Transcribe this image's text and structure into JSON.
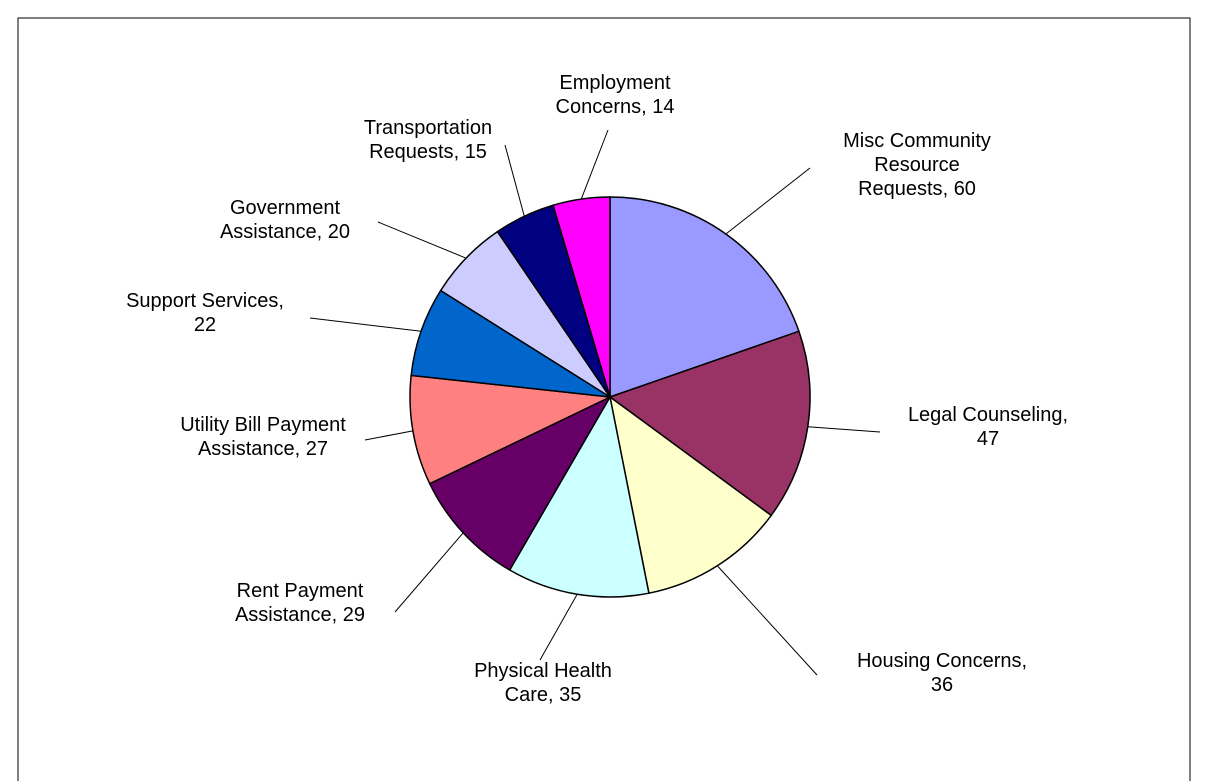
{
  "chart_data": {
    "type": "pie",
    "categories": [
      "Misc Community Resource Requests",
      "Legal Counseling",
      "Housing Concerns",
      "Physical Health Care",
      "Rent Payment Assistance",
      "Utility Bill Payment Assistance",
      "Support Services",
      "Government Assistance",
      "Transportation Requests",
      "Employment Concerns"
    ],
    "values": [
      60,
      47,
      36,
      35,
      29,
      27,
      22,
      20,
      15,
      14
    ],
    "colors": [
      "#9999ff",
      "#993366",
      "#ffffcc",
      "#ccffff",
      "#660066",
      "#ff8080",
      "#0066cc",
      "#ccccff",
      "#000080",
      "#ff00ff"
    ],
    "label_separator": ", "
  }
}
